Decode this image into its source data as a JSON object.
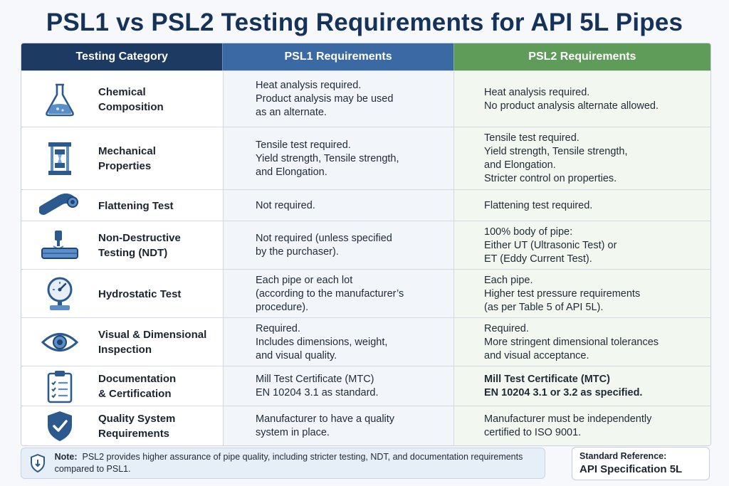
{
  "title": "PSL1 vs PSL2 Testing Requirements for API 5L Pipes",
  "headers": {
    "category": "Testing Category",
    "psl1": "PSL1 Requirements",
    "psl2": "PSL2 Requirements"
  },
  "rows": [
    {
      "icon": "flask-icon",
      "category": "Chemical\nComposition",
      "psl1": "Heat analysis required.\nProduct analysis may be used\nas an alternate.",
      "psl2": "Heat analysis required.\nNo product analysis alternate allowed."
    },
    {
      "icon": "tensile-machine-icon",
      "category": "Mechanical\nProperties",
      "psl1": "Tensile test required.\nYield strength, Tensile strength,\nand Elongation.",
      "psl2": "Tensile test required.\nYield strength, Tensile strength,\nand Elongation.\nStricter control on properties."
    },
    {
      "icon": "pipe-icon",
      "category": "Flattening Test",
      "psl1": "Not required.",
      "psl2": "Flattening test required."
    },
    {
      "icon": "ndt-probe-icon",
      "category": "Non-Destructive\nTesting (NDT)",
      "psl1": "Not required (unless specified\nby the purchaser).",
      "psl2": "100% body of pipe:\nEither UT (Ultrasonic Test) or\nET (Eddy Current Test)."
    },
    {
      "icon": "pressure-gauge-icon",
      "category": "Hydrostatic Test",
      "psl1": "Each pipe or each lot\n(according to the manufacturer’s\nprocedure).",
      "psl2": "Each pipe.\nHigher test pressure requirements\n(as per Table 5 of API 5L)."
    },
    {
      "icon": "eye-icon",
      "category": "Visual & Dimensional\nInspection",
      "psl1": "Required.\nIncludes dimensions, weight,\nand visual quality.",
      "psl2": "Required.\nMore stringent dimensional tolerances\nand visual acceptance."
    },
    {
      "icon": "clipboard-checklist-icon",
      "category": "Documentation\n& Certification",
      "psl1": "Mill Test Certificate (MTC)\nEN 10204 3.1 as standard.",
      "psl2": "Mill Test Certificate (MTC)\nEN 10204 3.1 or 3.2 as specified."
    },
    {
      "icon": "shield-check-icon",
      "category": "Quality System\nRequirements",
      "psl1": "Manufacturer to have a quality\nsystem in place.",
      "psl2": "Manufacturer must be independently\ncertified to ISO 9001."
    }
  ],
  "note": {
    "label": "Note:",
    "text": "PSL2 provides higher assurance of pipe quality, including stricter testing, NDT, and documentation requirements compared to PSL1."
  },
  "reference": {
    "label": "Standard Reference:",
    "value": "API Specification 5L"
  },
  "colors": {
    "title": "#15325a",
    "header_category": "#1d3a63",
    "header_psl1": "#3a69a3",
    "header_psl2": "#5f9c59",
    "icon": "#2c5a8e"
  }
}
